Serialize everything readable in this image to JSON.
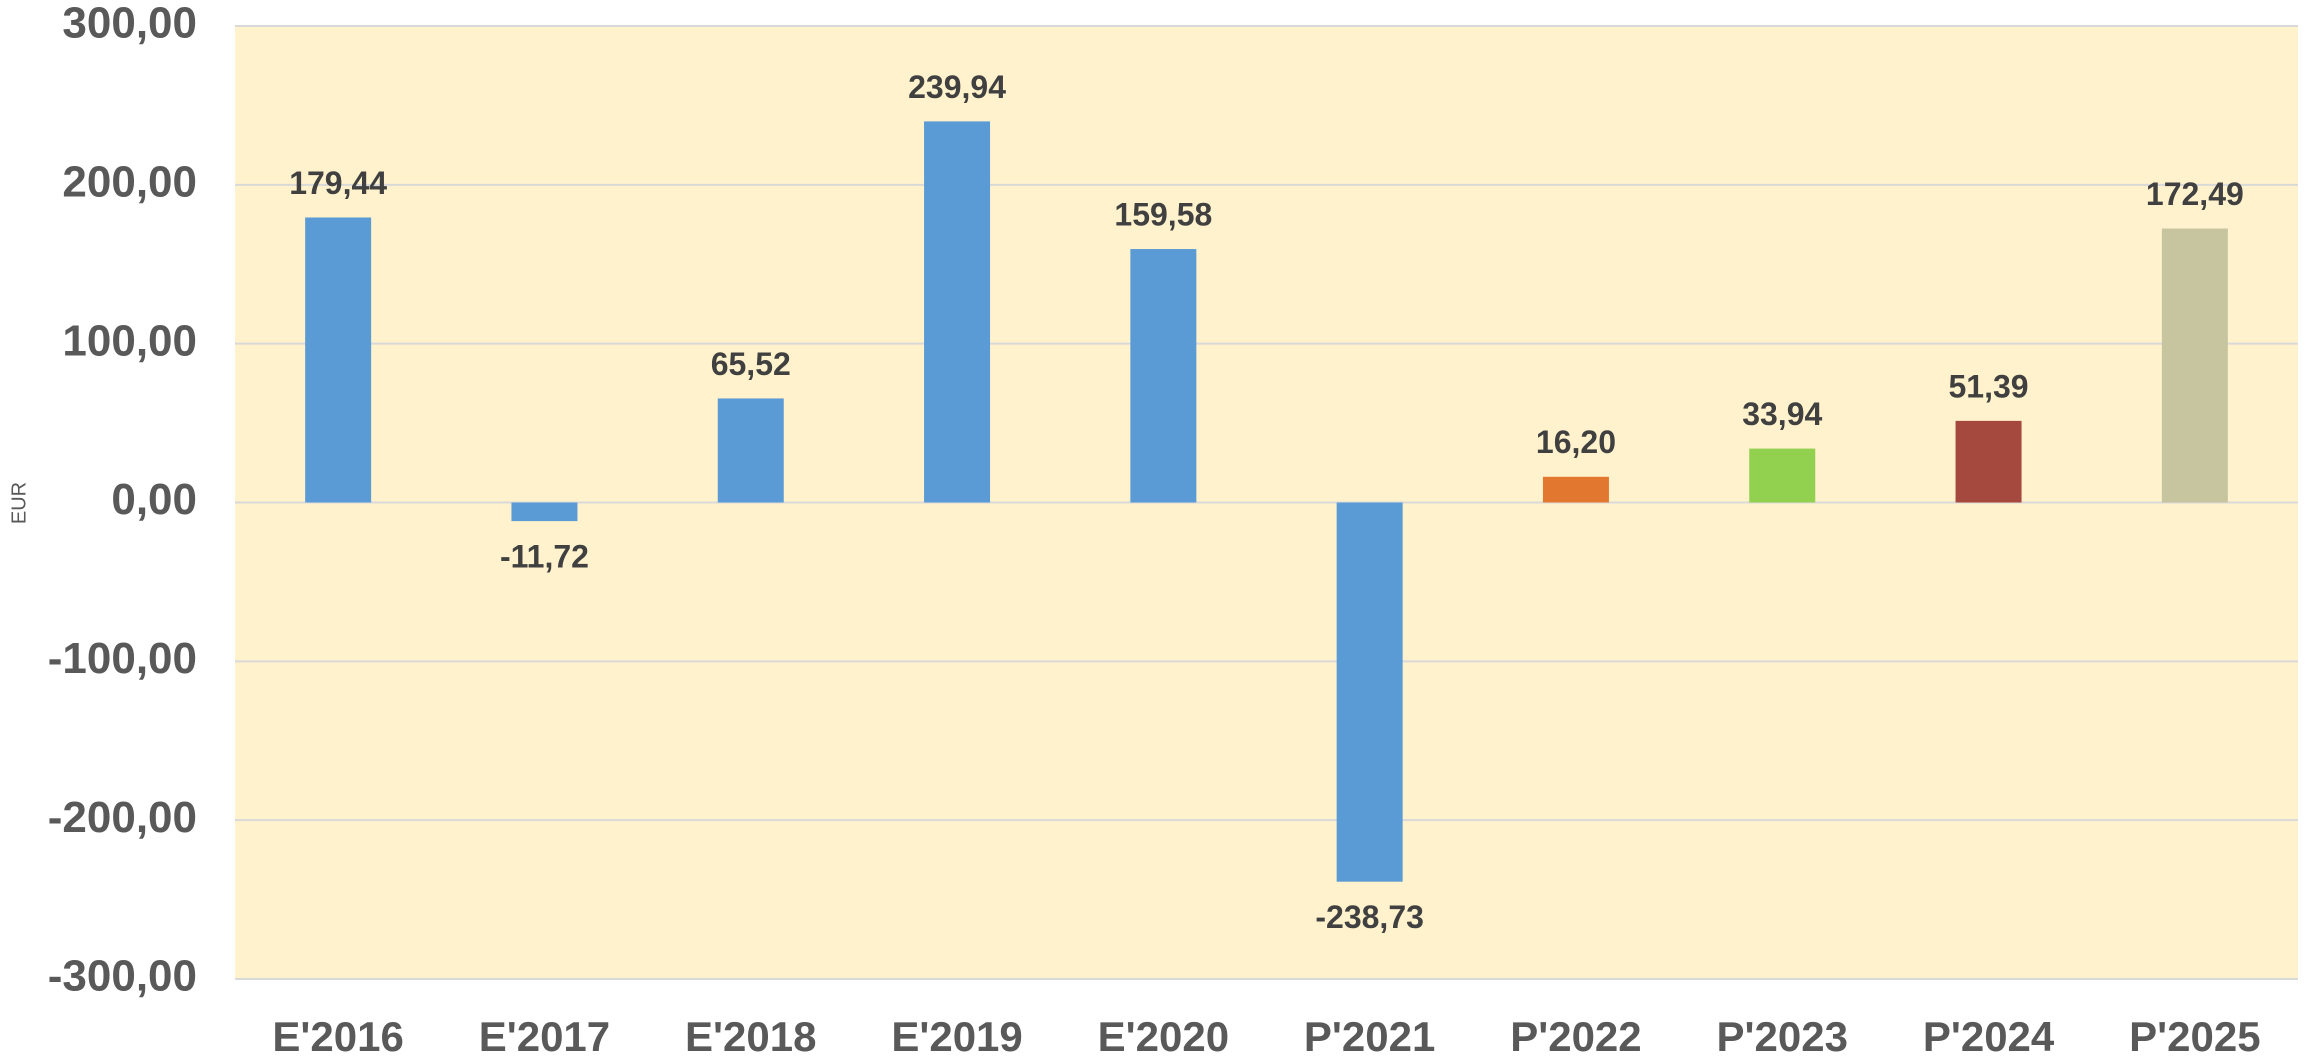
{
  "chart_data": {
    "type": "bar",
    "y_label": "EUR",
    "categories": [
      "E'2016",
      "E'2017",
      "E'2018",
      "E'2019",
      "E'2020",
      "P'2021",
      "P'2022",
      "P'2023",
      "P'2024",
      "P'2025"
    ],
    "values": [
      179.44,
      -11.72,
      65.52,
      239.94,
      159.58,
      -238.73,
      16.2,
      33.94,
      51.39,
      172.49
    ],
    "value_labels": [
      "179,44",
      "-11,72",
      "65,52",
      "239,94",
      "159,58",
      "-238,73",
      "16,20",
      "33,94",
      "51,39",
      "172,49"
    ],
    "colors": [
      "#5b9bd5",
      "#5b9bd5",
      "#5b9bd5",
      "#5b9bd5",
      "#5b9bd5",
      "#5b9bd5",
      "#e2782f",
      "#92d050",
      "#a5493f",
      "#c6c5a0"
    ],
    "ylim": [
      -300,
      300
    ],
    "yticks": [
      {
        "value": -300,
        "label": "-300,00"
      },
      {
        "value": -200,
        "label": "-200,00"
      },
      {
        "value": -100,
        "label": "-100,00"
      },
      {
        "value": 0,
        "label": "0,00"
      },
      {
        "value": 100,
        "label": "100,00"
      },
      {
        "value": 200,
        "label": "200,00"
      },
      {
        "value": 300,
        "label": "300,00"
      }
    ],
    "grid": true
  }
}
